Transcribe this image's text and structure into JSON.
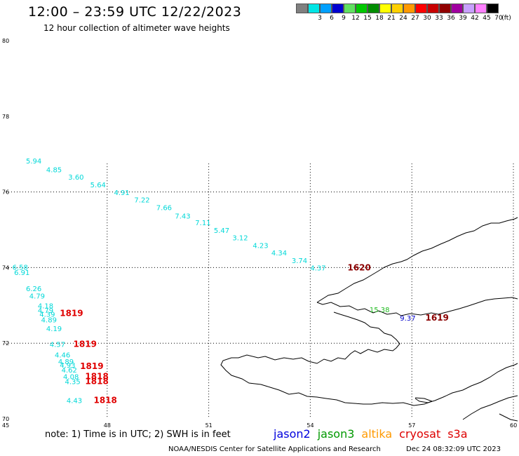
{
  "header": {
    "title": "12:00 – 23:59 UTC 12/22/2023",
    "subtitle": "12 hour collection of altimeter wave heights"
  },
  "legend": {
    "unit": "(ft)",
    "items": [
      {
        "label": "",
        "color": "#808080"
      },
      {
        "label": "3",
        "color": "#00e5e5"
      },
      {
        "label": "6",
        "color": "#00a0ff"
      },
      {
        "label": "9",
        "color": "#0000d0"
      },
      {
        "label": "12",
        "color": "#60e060"
      },
      {
        "label": "15",
        "color": "#00c800"
      },
      {
        "label": "18",
        "color": "#008c00"
      },
      {
        "label": "21",
        "color": "#ffff00"
      },
      {
        "label": "24",
        "color": "#ffd000"
      },
      {
        "label": "27",
        "color": "#ff9900"
      },
      {
        "label": "30",
        "color": "#ff0000"
      },
      {
        "label": "33",
        "color": "#c80000"
      },
      {
        "label": "36",
        "color": "#900000"
      },
      {
        "label": "39",
        "color": "#a000a0"
      },
      {
        "label": "42",
        "color": "#c8a0ff"
      },
      {
        "label": "45",
        "color": "#ff80ff"
      },
      {
        "label": "70",
        "color": "#000000"
      }
    ]
  },
  "axes": {
    "lat_labels": [
      "80",
      "78",
      "76",
      "74",
      "72",
      "70"
    ],
    "lon_labels": [
      "45",
      "48",
      "51",
      "54",
      "57",
      "60"
    ]
  },
  "observations": [
    {
      "text": "5.94",
      "color": "#00d8d8",
      "lat": 76.75,
      "lon": 45.6
    },
    {
      "text": "4.85",
      "color": "#00d8d8",
      "lat": 76.52,
      "lon": 46.2
    },
    {
      "text": "3.60",
      "color": "#00d8d8",
      "lat": 76.33,
      "lon": 46.85
    },
    {
      "text": "5.64",
      "color": "#00d8d8",
      "lat": 76.12,
      "lon": 47.5
    },
    {
      "text": "4.91",
      "color": "#00d8d8",
      "lat": 75.92,
      "lon": 48.2
    },
    {
      "text": "7.22",
      "color": "#00d8d8",
      "lat": 75.72,
      "lon": 48.8
    },
    {
      "text": "7.66",
      "color": "#00d8d8",
      "lat": 75.52,
      "lon": 49.45
    },
    {
      "text": "7.43",
      "color": "#00d8d8",
      "lat": 75.3,
      "lon": 50.0
    },
    {
      "text": "7.11",
      "color": "#00d8d8",
      "lat": 75.12,
      "lon": 50.6
    },
    {
      "text": "5.47",
      "color": "#00d8d8",
      "lat": 74.92,
      "lon": 51.15
    },
    {
      "text": "3.12",
      "color": "#00d8d8",
      "lat": 74.72,
      "lon": 51.7
    },
    {
      "text": "4.23",
      "color": "#00d8d8",
      "lat": 74.52,
      "lon": 52.3
    },
    {
      "text": "4.34",
      "color": "#00d8d8",
      "lat": 74.32,
      "lon": 52.85
    },
    {
      "text": "3.74",
      "color": "#00d8d8",
      "lat": 74.12,
      "lon": 53.45
    },
    {
      "text": "4.37",
      "color": "#00d8d8",
      "lat": 73.92,
      "lon": 54.0
    },
    {
      "text": "6.58",
      "color": "#00d8d8",
      "lat": 73.94,
      "lon": 45.2
    },
    {
      "text": "6.91",
      "color": "#00d8d8",
      "lat": 73.8,
      "lon": 45.25
    },
    {
      "text": "6.26",
      "color": "#00d8d8",
      "lat": 73.38,
      "lon": 45.6
    },
    {
      "text": "4.79",
      "color": "#00d8d8",
      "lat": 73.18,
      "lon": 45.7
    },
    {
      "text": "4.18",
      "color": "#00d8d8",
      "lat": 72.92,
      "lon": 45.95
    },
    {
      "text": "4.79",
      "color": "#00d8d8",
      "lat": 72.8,
      "lon": 45.95
    },
    {
      "text": "4.39",
      "color": "#00d8d8",
      "lat": 72.7,
      "lon": 46.0
    },
    {
      "text": "4.89",
      "color": "#00d8d8",
      "lat": 72.55,
      "lon": 46.05
    },
    {
      "text": "4.19",
      "color": "#00d8d8",
      "lat": 72.32,
      "lon": 46.2
    },
    {
      "text": "4.57",
      "color": "#00d8d8",
      "lat": 71.9,
      "lon": 46.3
    },
    {
      "text": "4.46",
      "color": "#00d8d8",
      "lat": 71.62,
      "lon": 46.45
    },
    {
      "text": "4.89",
      "color": "#00d8d8",
      "lat": 71.45,
      "lon": 46.55
    },
    {
      "text": "4.93",
      "color": "#00d8d8",
      "lat": 71.35,
      "lon": 46.6
    },
    {
      "text": "4.62",
      "color": "#00d8d8",
      "lat": 71.22,
      "lon": 46.65
    },
    {
      "text": "4.08",
      "color": "#00d8d8",
      "lat": 71.05,
      "lon": 46.7
    },
    {
      "text": "4.35",
      "color": "#00d8d8",
      "lat": 70.92,
      "lon": 46.75
    },
    {
      "text": "4.43",
      "color": "#00d8d8",
      "lat": 70.42,
      "lon": 46.8
    },
    {
      "text": "15.38",
      "color": "#22bb22",
      "lat": 72.82,
      "lon": 55.75
    },
    {
      "text": "9.37",
      "color": "#0000cc",
      "lat": 72.6,
      "lon": 56.65
    }
  ],
  "pass_times": [
    {
      "text": "1620",
      "color": "#8b0000",
      "lat": 73.92,
      "lon": 55.1
    },
    {
      "text": "1619",
      "color": "#8b0000",
      "lat": 72.6,
      "lon": 57.4
    },
    {
      "text": "1819",
      "color": "#e00000",
      "lat": 72.72,
      "lon": 46.6
    },
    {
      "text": "1819",
      "color": "#e00000",
      "lat": 71.9,
      "lon": 47.0
    },
    {
      "text": "1819",
      "color": "#e00000",
      "lat": 71.32,
      "lon": 47.2
    },
    {
      "text": "1818",
      "color": "#e00000",
      "lat": 71.05,
      "lon": 47.35
    },
    {
      "text": "1818",
      "color": "#e00000",
      "lat": 70.92,
      "lon": 47.35
    },
    {
      "text": "1818",
      "color": "#e00000",
      "lat": 70.42,
      "lon": 47.6
    }
  ],
  "footer": {
    "note": "note:  1) Time is in UTC;  2) SWH is in feet",
    "satellites": [
      {
        "name": "jason2",
        "color": "#0000dd"
      },
      {
        "name": "jason3",
        "color": "#009900"
      },
      {
        "name": "altika",
        "color": "#ff9900"
      },
      {
        "name": "cryosat",
        "color": "#dd0000"
      },
      {
        "name": "s3a",
        "color": "#dd0000"
      }
    ],
    "credit": "NOAA/NESDIS Center for Satellite Applications and Research",
    "timestamp": "Dec 24 08:32:09 UTC 2023"
  }
}
